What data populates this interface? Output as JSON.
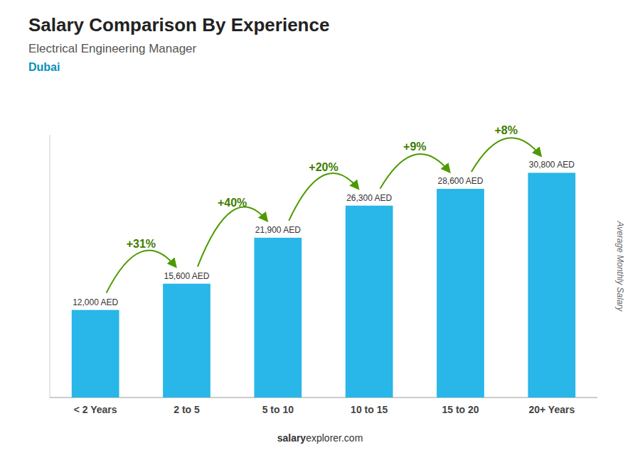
{
  "chart_data": {
    "type": "bar",
    "title": "Salary Comparison By Experience",
    "subtitle": "Electrical Engineering Manager",
    "city": "Dubai",
    "categories": [
      "< 2 Years",
      "2 to 5",
      "5 to 10",
      "10 to 15",
      "15 to 20",
      "20+ Years"
    ],
    "values": [
      12000,
      15600,
      21900,
      26300,
      28600,
      30800
    ],
    "value_labels": [
      "12,000 AED",
      "15,600 AED",
      "21,900 AED",
      "26,300 AED",
      "28,600 AED",
      "30,800 AED"
    ],
    "data_labels": true,
    "color": "#29b6e8",
    "ylabel": "Average Monthly Salary",
    "ylim": [
      0,
      36000
    ],
    "tick_labels": "x",
    "grid": false,
    "annotations": [
      {
        "value": 31,
        "label": "+31%"
      },
      {
        "value": 40,
        "label": "+40%"
      },
      {
        "value": 20,
        "label": "+20%"
      },
      {
        "value": 9,
        "label": "+9%"
      },
      {
        "value": 8,
        "label": "+8%"
      }
    ],
    "footer": [
      "salary",
      "explorer.com"
    ]
  }
}
